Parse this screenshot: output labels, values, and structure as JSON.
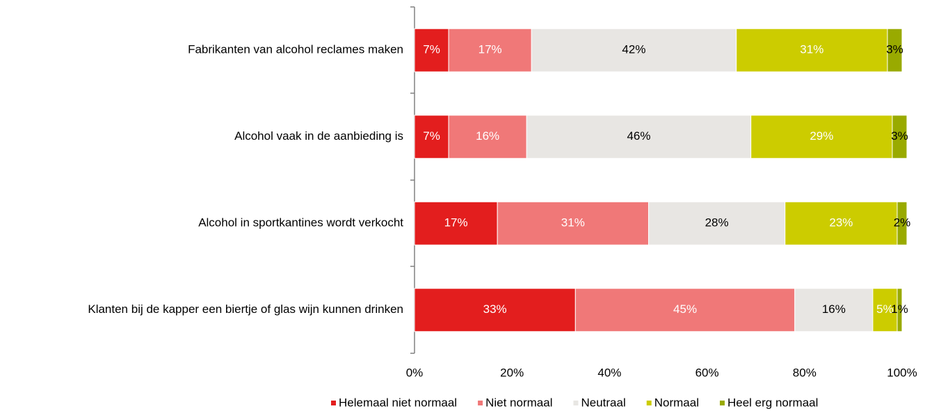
{
  "chart_data": {
    "type": "stacked_bar_horizontal",
    "categories": [
      "Fabrikanten van alcohol reclames maken",
      "Alcohol vaak in de aanbieding is",
      "Alcohol in sportkantines wordt verkocht",
      "Klanten bij de kapper een biertje of glas wijn kunnen drinken"
    ],
    "series": [
      {
        "name": "Helemaal niet normaal",
        "color": "#e31e1e",
        "label_color": "#ffffff",
        "values": [
          7,
          7,
          17,
          33
        ],
        "value_labels": [
          "7%",
          "7%",
          "17%",
          "33%"
        ]
      },
      {
        "name": "Niet normaal",
        "color": "#f07878",
        "label_color": "#ffffff",
        "values": [
          17,
          16,
          31,
          45
        ],
        "value_labels": [
          "17%",
          "16%",
          "31%",
          "45%"
        ]
      },
      {
        "name": "Neutraal",
        "color": "#e8e6e3",
        "label_color": "#000000",
        "values": [
          42,
          46,
          28,
          16
        ],
        "value_labels": [
          "42%",
          "46%",
          "28%",
          "16%"
        ]
      },
      {
        "name": "Normaal",
        "color": "#cccc00",
        "label_color": "#ffffff",
        "values": [
          31,
          29,
          23,
          5
        ],
        "value_labels": [
          "31%",
          "29%",
          "23%",
          "5%"
        ]
      },
      {
        "name": "Heel erg normaal",
        "color": "#99aa00",
        "label_color": "#000000",
        "values": [
          3,
          3,
          2,
          1
        ],
        "value_labels": [
          "3%",
          "3%",
          "2%",
          "1%"
        ]
      }
    ],
    "xlim": [
      0,
      100
    ],
    "xticks": [
      {
        "value": 0,
        "label": "0%"
      },
      {
        "value": 20,
        "label": "20%"
      },
      {
        "value": 40,
        "label": "40%"
      },
      {
        "value": 60,
        "label": "60%"
      },
      {
        "value": 80,
        "label": "80%"
      },
      {
        "value": 100,
        "label": "100%"
      }
    ],
    "legend": "bottom"
  }
}
